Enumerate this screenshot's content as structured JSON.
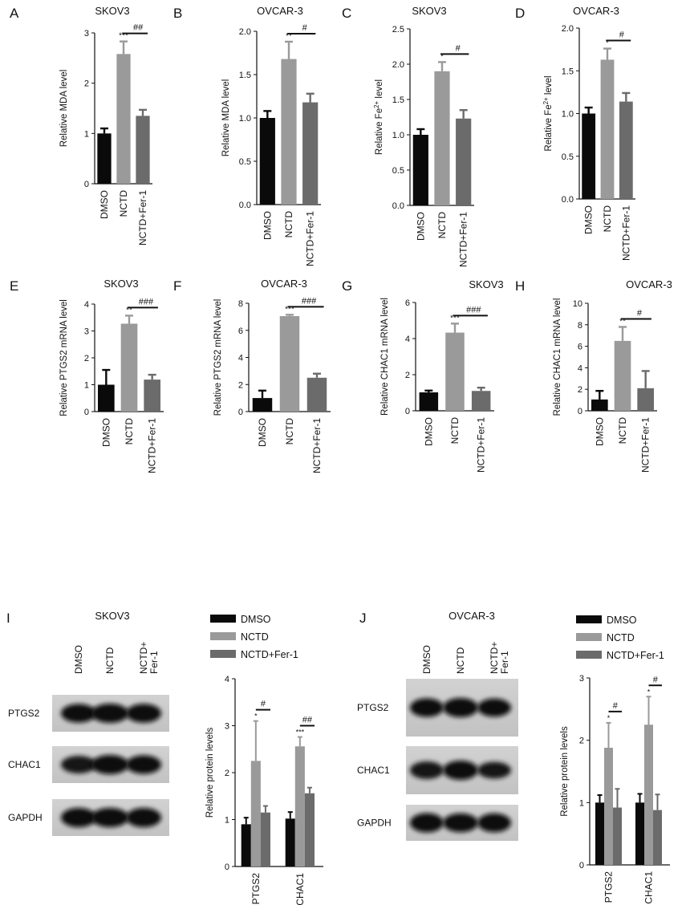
{
  "panel_letters": [
    "A",
    "B",
    "C",
    "D",
    "E",
    "F",
    "G",
    "H",
    "I",
    "J"
  ],
  "colors": {
    "DMSO": "#0a0a0a",
    "NCTD": "#9a9a9a",
    "NCTD+Fer-1": "#6b6b6b",
    "axis": "#111111"
  },
  "chart_data": [
    {
      "panel": "A",
      "type": "bar",
      "title": "SKOV3",
      "ylabel": "Relative MDA level",
      "ylim": [
        0,
        3
      ],
      "yticks": [
        "0",
        "1",
        "2",
        "3"
      ],
      "categories": [
        "DMSO",
        "NCTD",
        "NCTD+Fer-1"
      ],
      "values": [
        1.0,
        2.58,
        1.35
      ],
      "errors": [
        0.1,
        0.25,
        0.12
      ],
      "stars": [
        "",
        "***",
        ""
      ],
      "bracket": {
        "from": 1,
        "to": 2,
        "label": "##"
      }
    },
    {
      "panel": "B",
      "type": "bar",
      "title": "OVCAR-3",
      "ylabel": "Relative MDA level",
      "ylim": [
        0,
        2.0
      ],
      "yticks": [
        "0.0",
        "0.5",
        "1.0",
        "1.5",
        "2.0"
      ],
      "categories": [
        "DMSO",
        "NCTD",
        "NCTD+Fer-1"
      ],
      "values": [
        1.0,
        1.68,
        1.18
      ],
      "errors": [
        0.08,
        0.2,
        0.1
      ],
      "stars": [
        "",
        "**",
        ""
      ],
      "bracket": {
        "from": 1,
        "to": 2,
        "label": "#"
      }
    },
    {
      "panel": "C",
      "type": "bar",
      "title": "SKOV3",
      "ylabel": "Relative Fe2+ level",
      "ylim": [
        0,
        2.5
      ],
      "yticks": [
        "0.0",
        "0.5",
        "1.0",
        "1.5",
        "2.0",
        "2.5"
      ],
      "categories": [
        "DMSO",
        "NCTD",
        "NCTD+Fer-1"
      ],
      "values": [
        1.0,
        1.9,
        1.23
      ],
      "errors": [
        0.08,
        0.13,
        0.12
      ],
      "stars": [
        "",
        "*",
        ""
      ],
      "bracket": {
        "from": 1,
        "to": 2,
        "label": "#"
      }
    },
    {
      "panel": "D",
      "type": "bar",
      "title": "OVCAR-3",
      "ylabel": "Relative Fe2+ level",
      "ylim": [
        0,
        2.0
      ],
      "yticks": [
        "0.0",
        "0.5",
        "1.0",
        "1.5",
        "2.0"
      ],
      "categories": [
        "DMSO",
        "NCTD",
        "NCTD+Fer-1"
      ],
      "values": [
        1.0,
        1.63,
        1.14
      ],
      "errors": [
        0.07,
        0.13,
        0.1
      ],
      "stars": [
        "",
        "*",
        ""
      ],
      "bracket": {
        "from": 1,
        "to": 2,
        "label": "#"
      }
    },
    {
      "panel": "E",
      "type": "bar",
      "title": "SKOV3",
      "ylabel": "Relative PTGS2 mRNA level",
      "ylim": [
        0,
        4
      ],
      "yticks": [
        "0",
        "1",
        "2",
        "3",
        "4"
      ],
      "categories": [
        "DMSO",
        "NCTD",
        "NCTD+Fer-1"
      ],
      "values": [
        1.0,
        3.27,
        1.19
      ],
      "errors": [
        0.55,
        0.3,
        0.18
      ],
      "stars": [
        "",
        "**",
        ""
      ],
      "bracket": {
        "from": 1,
        "to": 2,
        "label": "###"
      }
    },
    {
      "panel": "F",
      "type": "bar",
      "title": "OVCAR-3",
      "ylabel": "Relative PTGS2 mRNA level",
      "ylim": [
        0,
        8
      ],
      "yticks": [
        "0",
        "2",
        "4",
        "6",
        "8"
      ],
      "categories": [
        "DMSO",
        "NCTD",
        "NCTD+Fer-1"
      ],
      "values": [
        1.0,
        7.05,
        2.5
      ],
      "errors": [
        0.55,
        0.1,
        0.3
      ],
      "stars": [
        "",
        "***",
        ""
      ],
      "bracket": {
        "from": 1,
        "to": 2,
        "label": "###"
      }
    },
    {
      "panel": "G",
      "type": "bar",
      "title": "SKOV3",
      "ylabel": "Relative CHAC1 mRNA level",
      "ylim": [
        0,
        6
      ],
      "yticks": [
        "0",
        "2",
        "4",
        "6"
      ],
      "categories": [
        "DMSO",
        "NCTD",
        "NCTD+Fer-1"
      ],
      "values": [
        1.02,
        4.33,
        1.1
      ],
      "errors": [
        0.1,
        0.5,
        0.18
      ],
      "stars": [
        "",
        "***",
        ""
      ],
      "bracket": {
        "from": 1,
        "to": 2,
        "label": "###"
      }
    },
    {
      "panel": "H",
      "type": "bar",
      "title": "OVCAR-3",
      "ylabel": "Relative CHAC1 mRNA level",
      "ylim": [
        0,
        10
      ],
      "yticks": [
        "0",
        "2",
        "4",
        "6",
        "8",
        "10"
      ],
      "categories": [
        "DMSO",
        "NCTD",
        "NCTD+Fer-1"
      ],
      "values": [
        1.05,
        6.5,
        2.1
      ],
      "errors": [
        0.8,
        1.3,
        1.6
      ],
      "stars": [
        "",
        "**",
        ""
      ],
      "bracket": {
        "from": 1,
        "to": 2,
        "label": "#"
      }
    },
    {
      "panel": "I",
      "type": "bar",
      "title": "SKOV3",
      "ylabel": "Relative protein levels",
      "ylim": [
        0,
        4
      ],
      "yticks": [
        "0",
        "1",
        "2",
        "3",
        "4"
      ],
      "legend": [
        "DMSO",
        "NCTD",
        "NCTD+Fer-1"
      ],
      "categories": [
        "PTGS2",
        "CHAC1"
      ],
      "series": [
        {
          "name": "DMSO",
          "values": [
            0.9,
            1.02
          ],
          "errors": [
            0.14,
            0.14
          ]
        },
        {
          "name": "NCTD",
          "values": [
            2.25,
            2.56
          ],
          "errors": [
            0.85,
            0.2
          ]
        },
        {
          "name": "NCTD+Fer-1",
          "values": [
            1.15,
            1.56
          ],
          "errors": [
            0.14,
            0.12
          ]
        }
      ],
      "stars": [
        [
          "",
          "*",
          ""
        ],
        [
          "",
          "***",
          ""
        ]
      ],
      "brackets": [
        {
          "category": 0,
          "label": "#"
        },
        {
          "category": 1,
          "label": "##"
        }
      ]
    },
    {
      "panel": "J",
      "type": "bar",
      "title": "OVCAR-3",
      "ylabel": "Relative protein levels",
      "ylim": [
        0,
        3
      ],
      "yticks": [
        "0",
        "1",
        "2",
        "3"
      ],
      "legend": [
        "DMSO",
        "NCTD",
        "NCTD+Fer-1"
      ],
      "categories": [
        "PTGS2",
        "CHAC1"
      ],
      "series": [
        {
          "name": "DMSO",
          "values": [
            1.0,
            1.0
          ],
          "errors": [
            0.12,
            0.14
          ]
        },
        {
          "name": "NCTD",
          "values": [
            1.88,
            2.25
          ],
          "errors": [
            0.4,
            0.45
          ]
        },
        {
          "name": "NCTD+Fer-1",
          "values": [
            0.92,
            0.88
          ],
          "errors": [
            0.3,
            0.25
          ]
        }
      ],
      "stars": [
        [
          "",
          "*",
          ""
        ],
        [
          "",
          "*",
          ""
        ]
      ],
      "brackets": [
        {
          "category": 0,
          "label": "#"
        },
        {
          "category": 1,
          "label": "#"
        }
      ]
    }
  ],
  "blots": [
    {
      "panel": "I",
      "title": "SKOV3",
      "lanes": [
        "DMSO",
        "NCTD",
        "NCTD+ Fer-1"
      ],
      "rows": [
        "PTGS2",
        "CHAC1",
        "GAPDH"
      ]
    },
    {
      "panel": "J",
      "title": "OVCAR-3",
      "lanes": [
        "DMSO",
        "NCTD",
        "NCTD+ Fer-1"
      ],
      "rows": [
        "PTGS2",
        "CHAC1",
        "GAPDH"
      ]
    }
  ]
}
